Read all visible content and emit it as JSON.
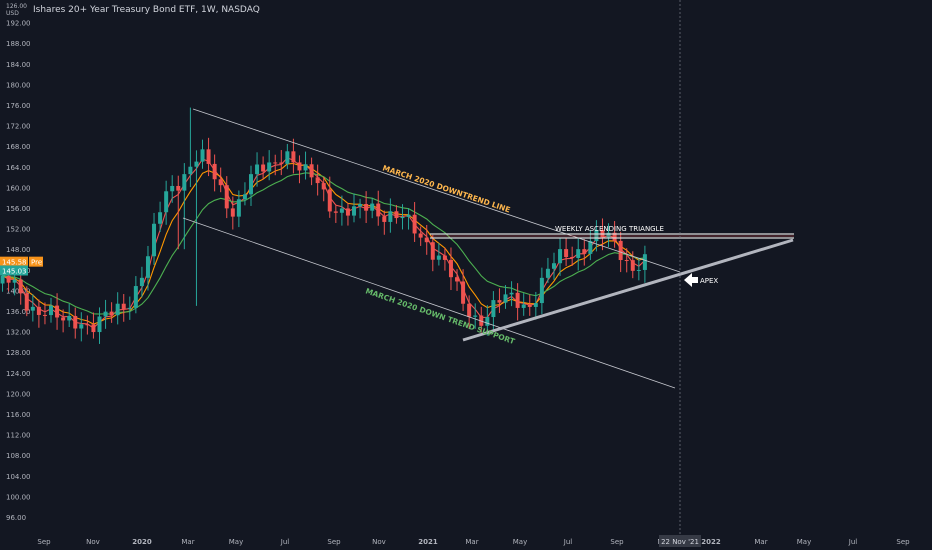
{
  "header": {
    "title": "Ishares 20+ Year Treasury Bond ETF, 1W, NASDAQ",
    "currency_top": "126.00",
    "currency": "USD"
  },
  "price_tags": {
    "pre_value": "145.58",
    "pre_label": "Pre",
    "last_value": "145.03",
    "pre_color": "#f7931a",
    "last_color": "#26a69a"
  },
  "crosshair_date": "22 Nov '21",
  "annotations": {
    "downtrend": "MARCH 2020 DOWNTREND LINE",
    "support": "MARCH 2020 DOWN TREND SUPPORT",
    "triangle": "WEEKLY ASCENDING TRIANGLE",
    "apex": "APEX"
  },
  "colors": {
    "background": "#131722",
    "up": "#26a69a",
    "down": "#ef5350",
    "ema_fast": "#ef5350",
    "ema_mid": "#ff9800",
    "ema_slow": "#4caf50",
    "downtrend_label": "#ffb74d",
    "support_label": "#66bb6a",
    "text": "#b2b5be"
  },
  "chart_data": {
    "type": "candlestick",
    "title": "Ishares 20+ Year Treasury Bond ETF, 1W, NASDAQ",
    "ylim": [
      95,
      196
    ],
    "y_ticks": [
      96,
      100,
      104,
      108,
      112,
      116,
      120,
      124,
      128,
      132,
      136,
      140,
      144,
      148,
      152,
      156,
      160,
      164,
      168,
      172,
      176,
      180,
      184,
      188,
      192
    ],
    "x_ticks": [
      "Sep",
      "Nov",
      "2020",
      "Mar",
      "May",
      "Jul",
      "Sep",
      "Nov",
      "2021",
      "Mar",
      "May",
      "Jul",
      "Sep",
      "N",
      "2022",
      "Mar",
      "May",
      "Jul",
      "Sep"
    ],
    "x_range": [
      "2019-08-25",
      "2022-09-25"
    ],
    "grid": false,
    "series_close": [
      {
        "date": "2019-09-02",
        "close": 141
      },
      {
        "date": "2019-09-23",
        "close": 138
      },
      {
        "date": "2019-10-14",
        "close": 136
      },
      {
        "date": "2019-11-04",
        "close": 133
      },
      {
        "date": "2019-11-25",
        "close": 135
      },
      {
        "date": "2019-12-16",
        "close": 133
      },
      {
        "date": "2020-01-06",
        "close": 135
      },
      {
        "date": "2020-01-27",
        "close": 139
      },
      {
        "date": "2020-02-17",
        "close": 146
      },
      {
        "date": "2020-03-09",
        "close": 158
      },
      {
        "date": "2020-03-30",
        "close": 163
      },
      {
        "date": "2020-04-20",
        "close": 166
      },
      {
        "date": "2020-05-11",
        "close": 161
      },
      {
        "date": "2020-06-01",
        "close": 156
      },
      {
        "date": "2020-06-22",
        "close": 161
      },
      {
        "date": "2020-07-13",
        "close": 164
      },
      {
        "date": "2020-08-03",
        "close": 168
      },
      {
        "date": "2020-08-24",
        "close": 162
      },
      {
        "date": "2020-09-14",
        "close": 161
      },
      {
        "date": "2020-10-05",
        "close": 156
      },
      {
        "date": "2020-10-26",
        "close": 154
      },
      {
        "date": "2020-11-16",
        "close": 157
      },
      {
        "date": "2020-12-07",
        "close": 155
      },
      {
        "date": "2021-01-04",
        "close": 152
      },
      {
        "date": "2021-01-25",
        "close": 150
      },
      {
        "date": "2021-02-15",
        "close": 145
      },
      {
        "date": "2021-03-08",
        "close": 137
      },
      {
        "date": "2021-03-29",
        "close": 135
      },
      {
        "date": "2021-04-19",
        "close": 137
      },
      {
        "date": "2021-05-10",
        "close": 138
      },
      {
        "date": "2021-05-31",
        "close": 138
      },
      {
        "date": "2021-06-21",
        "close": 143
      },
      {
        "date": "2021-07-12",
        "close": 147
      },
      {
        "date": "2021-08-02",
        "close": 149
      },
      {
        "date": "2021-08-23",
        "close": 150
      },
      {
        "date": "2021-09-13",
        "close": 149
      },
      {
        "date": "2021-10-04",
        "close": 145
      },
      {
        "date": "2021-10-25",
        "close": 145
      }
    ],
    "indicators": [
      {
        "name": "EMA fast",
        "color": "#ef5350"
      },
      {
        "name": "EMA mid",
        "color": "#ff9800"
      },
      {
        "name": "EMA slow",
        "color": "#4caf50"
      }
    ],
    "last_price": 145.03,
    "pre_market_price": 145.58
  }
}
